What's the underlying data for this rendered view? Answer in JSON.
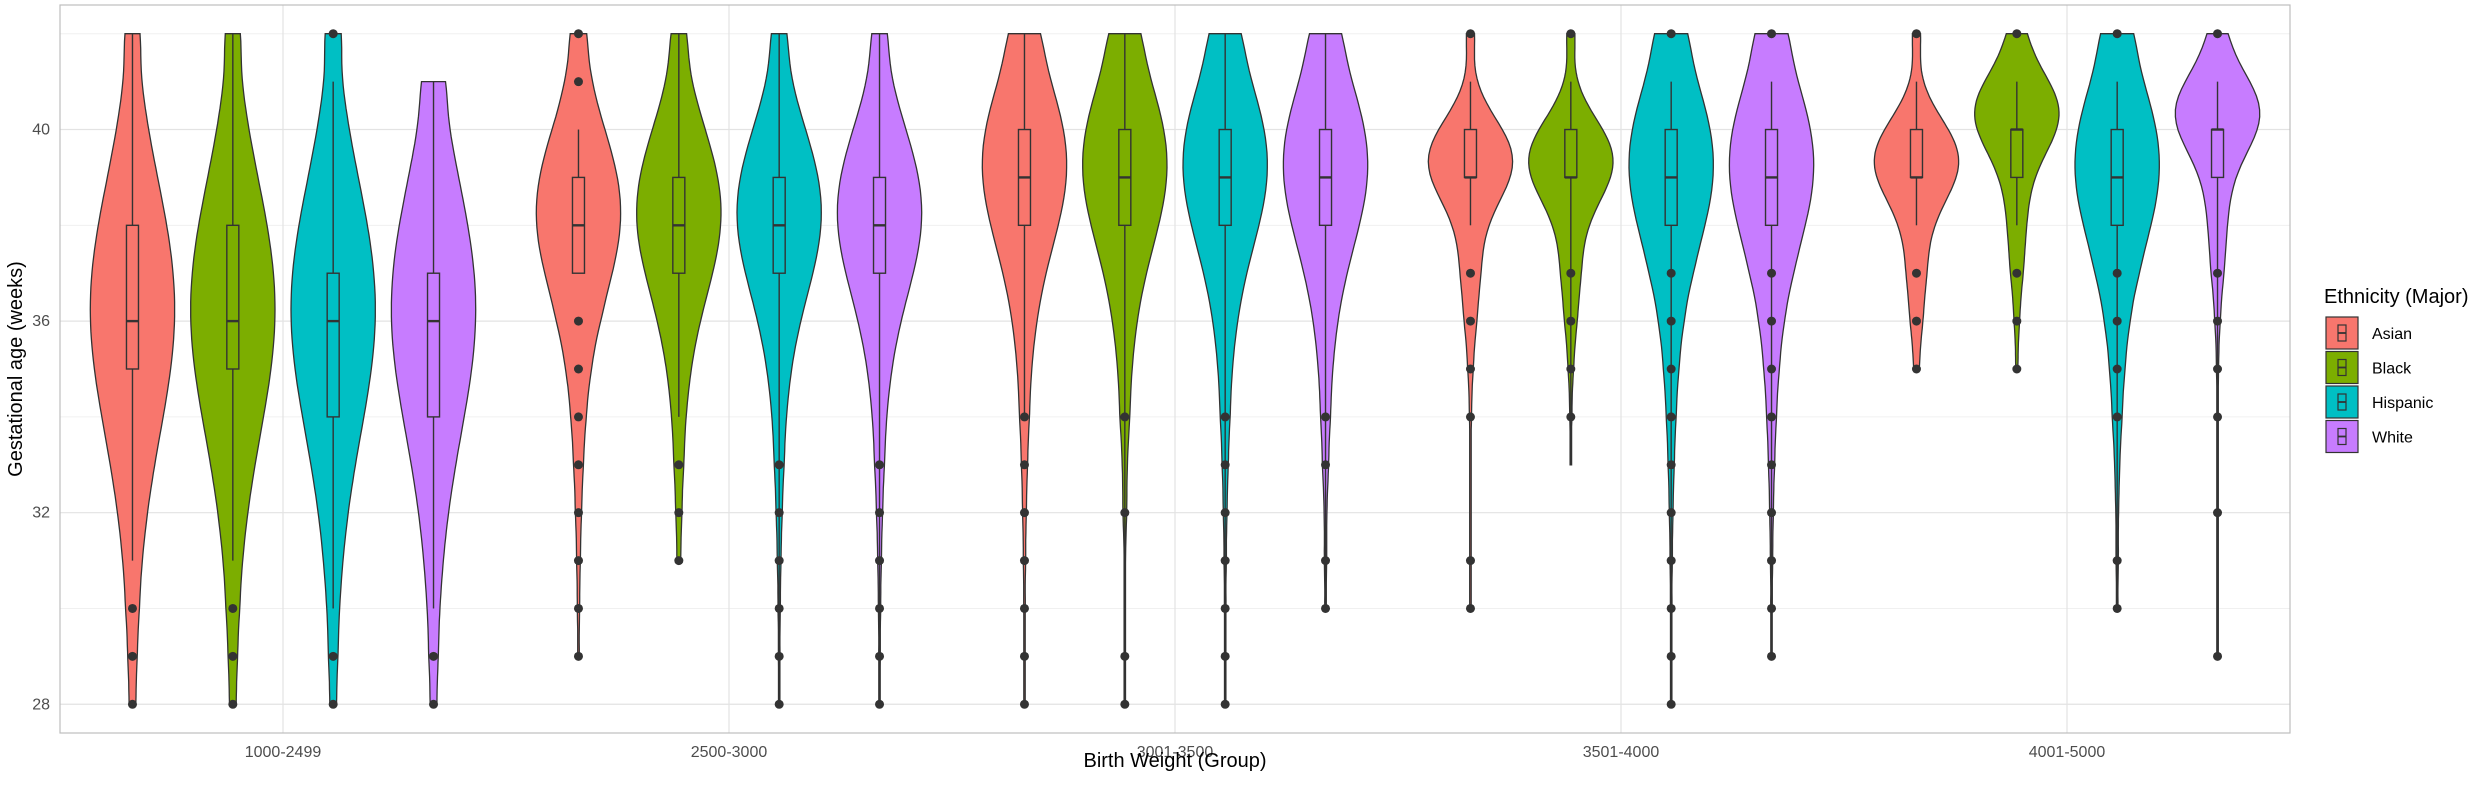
{
  "chart_data": {
    "type": "violin",
    "title": "",
    "xlabel": "Birth Weight (Group)",
    "ylabel": "Gestational age (weeks)",
    "ylim": [
      27.4,
      42.6
    ],
    "yticks": [
      28,
      32,
      36,
      40
    ],
    "grid": true,
    "legend": {
      "title": "Ethnicity (Major)",
      "placement": "right"
    },
    "categories": [
      "1000-2499",
      "2500-3000",
      "3001-3500",
      "3501-4000",
      "4001-5000"
    ],
    "series": [
      {
        "name": "Asian",
        "color": "#F8766D",
        "stats": [
          {
            "min": 28,
            "max": 42,
            "q1": 35,
            "median": 36,
            "q3": 38,
            "whisker_low": 31,
            "whisker_high": 42,
            "outliers": [
              28,
              29,
              30
            ]
          },
          {
            "min": 29,
            "max": 42,
            "q1": 37,
            "median": 38,
            "q3": 39,
            "whisker_low": 37,
            "whisker_high": 40,
            "outliers": [
              29,
              30,
              31,
              32,
              33,
              34,
              35,
              36,
              41,
              42
            ]
          },
          {
            "min": 28,
            "max": 42,
            "q1": 38,
            "median": 39,
            "q3": 40,
            "whisker_low": 34,
            "whisker_high": 42,
            "outliers": [
              28,
              29,
              30,
              31,
              32,
              33,
              34
            ]
          },
          {
            "min": 30,
            "max": 42,
            "q1": 39,
            "median": 39,
            "q3": 40,
            "whisker_low": 38,
            "whisker_high": 41,
            "outliers": [
              30,
              31,
              34,
              35,
              36,
              37,
              42
            ]
          },
          {
            "min": 35,
            "max": 42,
            "q1": 39,
            "median": 39,
            "q3": 40,
            "whisker_low": 38,
            "whisker_high": 41,
            "outliers": [
              35,
              36,
              37,
              42
            ]
          }
        ]
      },
      {
        "name": "Black",
        "color": "#7CAE00",
        "stats": [
          {
            "min": 28,
            "max": 42,
            "q1": 35,
            "median": 36,
            "q3": 38,
            "whisker_low": 31,
            "whisker_high": 42,
            "outliers": [
              28,
              29,
              30
            ]
          },
          {
            "min": 31,
            "max": 42,
            "q1": 37,
            "median": 38,
            "q3": 39,
            "whisker_low": 34,
            "whisker_high": 42,
            "outliers": [
              31,
              32,
              33
            ]
          },
          {
            "min": 28,
            "max": 42,
            "q1": 38,
            "median": 39,
            "q3": 40,
            "whisker_low": 28,
            "whisker_high": 42,
            "outliers": [
              28,
              29,
              32,
              34
            ]
          },
          {
            "min": 33,
            "max": 42,
            "q1": 39,
            "median": 39,
            "q3": 40,
            "whisker_low": 33,
            "whisker_high": 41,
            "outliers": [
              34,
              35,
              36,
              37,
              42
            ]
          },
          {
            "min": 35,
            "max": 42,
            "q1": 39,
            "median": 40,
            "q3": 40,
            "whisker_low": 38,
            "whisker_high": 41,
            "outliers": [
              35,
              36,
              37,
              42
            ]
          }
        ]
      },
      {
        "name": "Hispanic",
        "color": "#00BFC4",
        "stats": [
          {
            "min": 28,
            "max": 42,
            "q1": 34,
            "median": 36,
            "q3": 37,
            "whisker_low": 30,
            "whisker_high": 41,
            "outliers": [
              28,
              29,
              42
            ]
          },
          {
            "min": 28,
            "max": 42,
            "q1": 37,
            "median": 38,
            "q3": 39,
            "whisker_low": 28,
            "whisker_high": 42,
            "outliers": [
              28,
              29,
              30,
              31,
              32,
              33
            ]
          },
          {
            "min": 28,
            "max": 42,
            "q1": 38,
            "median": 39,
            "q3": 40,
            "whisker_low": 28,
            "whisker_high": 42,
            "outliers": [
              28,
              29,
              30,
              31,
              32,
              33,
              34
            ]
          },
          {
            "min": 28,
            "max": 42,
            "q1": 38,
            "median": 39,
            "q3": 40,
            "whisker_low": 28,
            "whisker_high": 41,
            "outliers": [
              28,
              29,
              30,
              31,
              32,
              33,
              34,
              35,
              36,
              37,
              42
            ]
          },
          {
            "min": 30,
            "max": 42,
            "q1": 38,
            "median": 39,
            "q3": 40,
            "whisker_low": 30,
            "whisker_high": 41,
            "outliers": [
              30,
              31,
              34,
              35,
              36,
              37,
              42
            ]
          }
        ]
      },
      {
        "name": "White",
        "color": "#C77CFF",
        "stats": [
          {
            "min": 28,
            "max": 41,
            "q1": 34,
            "median": 36,
            "q3": 37,
            "whisker_low": 30,
            "whisker_high": 41,
            "outliers": [
              28,
              29
            ]
          },
          {
            "min": 28,
            "max": 42,
            "q1": 37,
            "median": 38,
            "q3": 39,
            "whisker_low": 28,
            "whisker_high": 42,
            "outliers": [
              28,
              29,
              30,
              31,
              32,
              33
            ]
          },
          {
            "min": 30,
            "max": 42,
            "q1": 38,
            "median": 39,
            "q3": 40,
            "whisker_low": 30,
            "whisker_high": 42,
            "outliers": [
              30,
              31,
              33,
              34
            ]
          },
          {
            "min": 29,
            "max": 42,
            "q1": 38,
            "median": 39,
            "q3": 40,
            "whisker_low": 29,
            "whisker_high": 41,
            "outliers": [
              29,
              30,
              31,
              32,
              33,
              34,
              35,
              36,
              37,
              42
            ]
          },
          {
            "min": 29,
            "max": 42,
            "q1": 39,
            "median": 40,
            "q3": 40,
            "whisker_low": 29,
            "whisker_high": 41,
            "outliers": [
              29,
              32,
              34,
              35,
              36,
              37,
              42
            ]
          }
        ]
      }
    ]
  }
}
